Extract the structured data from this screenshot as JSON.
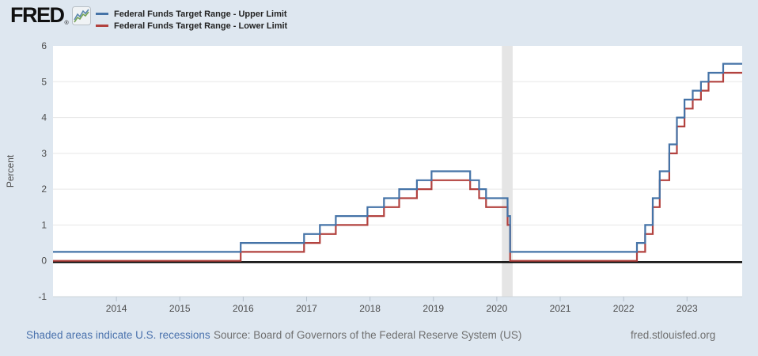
{
  "header": {
    "logo_text": "FRED",
    "logo_registered": "®",
    "legend": [
      {
        "label": "Federal Funds Target Range - Upper Limit",
        "color": "#4573a7"
      },
      {
        "label": "Federal Funds Target Range - Lower Limit",
        "color": "#b2423f"
      }
    ]
  },
  "chart_data": {
    "type": "line",
    "step": true,
    "title": "",
    "xlabel": "",
    "ylabel": "Percent",
    "x_ticks": [
      2014,
      2015,
      2016,
      2017,
      2018,
      2019,
      2020,
      2021,
      2022,
      2023
    ],
    "y_ticks": [
      -1,
      0,
      1,
      2,
      3,
      4,
      5,
      6
    ],
    "grid_values": [
      1,
      2,
      3,
      4,
      5
    ],
    "xlim": [
      2013.0,
      2023.87
    ],
    "ylim": [
      -1,
      6
    ],
    "grid": true,
    "legend_position": "top",
    "zero_line": true,
    "recession_bands": [
      {
        "start": 2020.08,
        "end": 2020.25
      }
    ],
    "series": [
      {
        "name": "Federal Funds Target Range - Upper Limit",
        "color": "#4573a7",
        "points": [
          [
            2013.0,
            0.25
          ],
          [
            2015.96,
            0.5
          ],
          [
            2016.96,
            0.75
          ],
          [
            2017.21,
            1.0
          ],
          [
            2017.46,
            1.25
          ],
          [
            2017.96,
            1.5
          ],
          [
            2018.22,
            1.75
          ],
          [
            2018.46,
            2.0
          ],
          [
            2018.74,
            2.25
          ],
          [
            2018.97,
            2.5
          ],
          [
            2019.58,
            2.25
          ],
          [
            2019.72,
            2.0
          ],
          [
            2019.83,
            1.75
          ],
          [
            2020.17,
            1.25
          ],
          [
            2020.21,
            0.25
          ],
          [
            2022.21,
            0.5
          ],
          [
            2022.34,
            1.0
          ],
          [
            2022.46,
            1.75
          ],
          [
            2022.57,
            2.5
          ],
          [
            2022.72,
            3.25
          ],
          [
            2022.84,
            4.0
          ],
          [
            2022.96,
            4.5
          ],
          [
            2023.09,
            4.75
          ],
          [
            2023.22,
            5.0
          ],
          [
            2023.34,
            5.25
          ],
          [
            2023.57,
            5.5
          ],
          [
            2023.87,
            5.5
          ]
        ]
      },
      {
        "name": "Federal Funds Target Range - Lower Limit",
        "color": "#b2423f",
        "points": [
          [
            2013.0,
            0.0
          ],
          [
            2015.96,
            0.25
          ],
          [
            2016.96,
            0.5
          ],
          [
            2017.21,
            0.75
          ],
          [
            2017.46,
            1.0
          ],
          [
            2017.96,
            1.25
          ],
          [
            2018.22,
            1.5
          ],
          [
            2018.46,
            1.75
          ],
          [
            2018.74,
            2.0
          ],
          [
            2018.97,
            2.25
          ],
          [
            2019.58,
            2.0
          ],
          [
            2019.72,
            1.75
          ],
          [
            2019.83,
            1.5
          ],
          [
            2020.17,
            1.0
          ],
          [
            2020.21,
            0.0
          ],
          [
            2022.21,
            0.25
          ],
          [
            2022.34,
            0.75
          ],
          [
            2022.46,
            1.5
          ],
          [
            2022.57,
            2.25
          ],
          [
            2022.72,
            3.0
          ],
          [
            2022.84,
            3.75
          ],
          [
            2022.96,
            4.25
          ],
          [
            2023.09,
            4.5
          ],
          [
            2023.22,
            4.75
          ],
          [
            2023.34,
            5.0
          ],
          [
            2023.57,
            5.25
          ],
          [
            2023.87,
            5.25
          ]
        ]
      }
    ]
  },
  "footer": {
    "recession_note": "Shaded areas indicate U.S. recessions",
    "source": "Source: Board of Governors of the Federal Reserve System (US)",
    "site": "fred.stlouisfed.org"
  },
  "colors": {
    "background": "#dee7f0",
    "plot_bg": "#ffffff",
    "grid": "#e7e7e7",
    "recession": "#e5e5e5",
    "zero_line": "#000000",
    "axis_line": "#cfd4d9",
    "tick_mark": "#b6c2ce",
    "axis_text": "#4d4d4d",
    "link": "#4a72ad",
    "muted_text": "#6f6f6f"
  }
}
